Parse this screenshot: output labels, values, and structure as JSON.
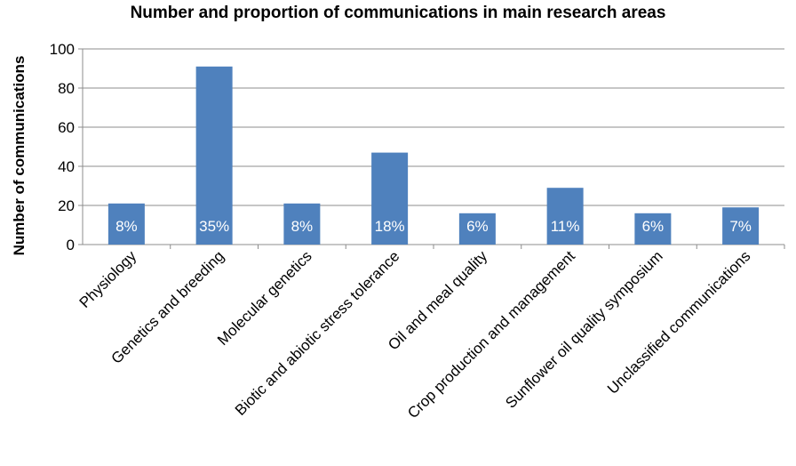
{
  "chart_data": {
    "type": "bar",
    "title": "Number and proportion of communications in main research areas",
    "xlabel": "",
    "ylabel": "Number of communications",
    "ylim": [
      0,
      100
    ],
    "yticks": [
      0,
      20,
      40,
      60,
      80,
      100
    ],
    "grid": true,
    "legend": "none",
    "bar_color": "#4F81BD",
    "categories": [
      "Physiology",
      "Genetics and breeding",
      "Molecular genetics",
      "Biotic and abiotic stress tolerance",
      "Oil and meal quality",
      "Crop production and management",
      "Sunflower oil quality symposium",
      "Unclassified communications"
    ],
    "values": [
      21,
      91,
      21,
      47,
      16,
      29,
      16,
      19
    ],
    "data_labels": [
      "8%",
      "35%",
      "8%",
      "18%",
      "6%",
      "11%",
      "6%",
      "7%"
    ]
  }
}
